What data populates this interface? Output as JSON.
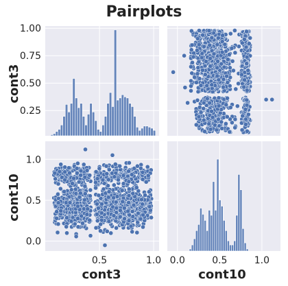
{
  "figure": {
    "title": "Pairplots"
  },
  "colors": {
    "panel_bg": "#eaeaf2",
    "grid": "#ffffff",
    "marker": "#4c72b0",
    "bar": "#4c72b0",
    "edge": "#ffffff"
  },
  "chart_data": [
    {
      "type": "bar",
      "panel": "cont3-histogram",
      "xlabel": "",
      "ylabel": "cont3",
      "xlim": [
        0.0,
        1.05
      ],
      "ylim_counts": [
        0,
        1.0
      ],
      "bin_edges_start": 0.05,
      "bin_width": 0.0225,
      "values": [
        0.01,
        0.02,
        0.04,
        0.06,
        0.1,
        0.18,
        0.29,
        0.22,
        0.3,
        0.53,
        0.35,
        0.26,
        0.3,
        0.18,
        0.1,
        0.2,
        0.3,
        0.22,
        0.14,
        0.06,
        0.04,
        0.1,
        0.18,
        0.3,
        0.4,
        0.27,
        0.98,
        0.33,
        0.35,
        0.38,
        0.36,
        0.35,
        0.3,
        0.27,
        0.18,
        0.08,
        0.05,
        0.07,
        0.09,
        0.09,
        0.08,
        0.07,
        0.05
      ],
      "yticks": [
        0.25,
        0.5,
        0.75,
        1.0
      ],
      "ytick_labels": [
        "0.25",
        "0.50",
        "0.75",
        "1.00"
      ],
      "ylim": [
        0.02,
        1.02
      ]
    },
    {
      "type": "scatter",
      "panel": "cont10-vs-cont3",
      "x_variable": "cont10",
      "y_variable": "cont3",
      "xlim": [
        -0.12,
        1.22
      ],
      "ylim": [
        0.02,
        1.02
      ],
      "description_points": [
        [
          -0.05,
          0.6
        ],
        [
          0.12,
          0.32
        ],
        [
          1.05,
          0.35
        ],
        [
          1.12,
          0.35
        ],
        [
          0.08,
          0.75
        ],
        [
          0.09,
          0.46
        ]
      ]
    },
    {
      "type": "scatter",
      "panel": "cont3-vs-cont10",
      "x_variable": "cont3",
      "y_variable": "cont10",
      "xlim": [
        0.0,
        1.05
      ],
      "ylim": [
        -0.12,
        1.22
      ],
      "yticks": [
        0.0,
        0.5,
        1.0
      ],
      "ytick_labels": [
        "0.0",
        "0.5",
        "1.0"
      ],
      "description_points": [
        [
          0.55,
          -0.05
        ],
        [
          0.37,
          1.12
        ],
        [
          0.62,
          1.05
        ],
        [
          0.3,
          0.95
        ],
        [
          0.12,
          0.7
        ],
        [
          0.95,
          0.8
        ]
      ]
    },
    {
      "type": "bar",
      "panel": "cont10-histogram",
      "xlabel": "cont10",
      "ylabel": "",
      "xlim": [
        -0.12,
        1.22
      ],
      "bin_edges_start": 0.14,
      "bin_width": 0.025,
      "values": [
        0.02,
        0.06,
        0.12,
        0.2,
        0.26,
        0.42,
        0.36,
        0.3,
        0.2,
        0.4,
        0.35,
        0.68,
        0.4,
        0.9,
        0.5,
        0.44,
        0.3,
        0.2,
        0.1,
        0.06,
        0.06,
        0.1,
        0.35,
        0.75,
        0.6,
        0.22,
        0.08,
        0.02
      ],
      "xticks": [
        0.0,
        0.5,
        1.0
      ],
      "xtick_labels": [
        "0.0",
        "0.5",
        "1.0"
      ]
    }
  ],
  "axes": {
    "bottom_left_xlabel": "cont3",
    "bottom_right_xlabel": "cont10",
    "top_ylabel": "cont3",
    "bottom_ylabel": "cont10",
    "cont3_xticks": [
      0.5,
      1.0
    ],
    "cont3_xtick_labels": [
      "0.5",
      "1.0"
    ]
  }
}
